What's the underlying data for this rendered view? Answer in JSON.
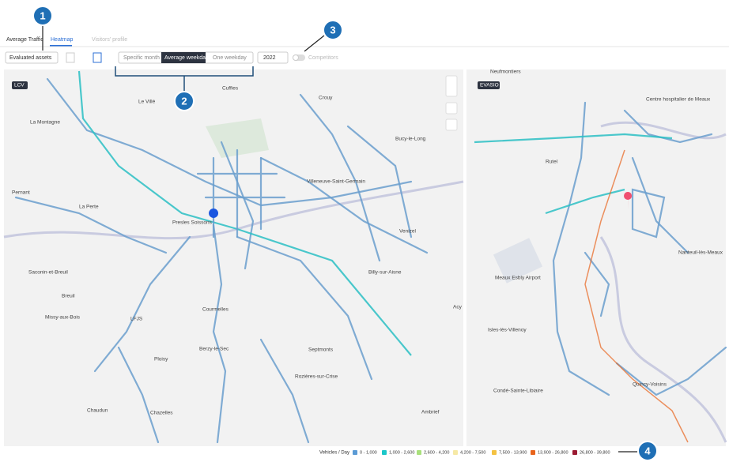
{
  "tabs": [
    "Average Traffic",
    "Heatmap",
    "Visitors' profile"
  ],
  "toolbar": {
    "assets": "Evaluated assets",
    "periods": [
      "Specific month",
      "Average weekday",
      "One weekday"
    ],
    "year": "2022",
    "competitors": "Competitors"
  },
  "maps": [
    {
      "badge": "LCV",
      "places": [
        "Crouy",
        "Cuffies",
        "Le Villé",
        "La Montagne",
        "Bucy-le-Long",
        "Villeneuve-Saint-Germain",
        "Pernant",
        "La Perte",
        "Presles Soissons",
        "Venizel",
        "Billy-sur-Aisne",
        "Saconin-et-Breuil",
        "Breuil",
        "Missy-aux-Bois",
        "LFJS",
        "Courmelles",
        "Berzy-le-Sec",
        "Ploisy",
        "Septmonts",
        "Rozières-sur-Crise",
        "Chaudun",
        "Chazelles",
        "Ambrief",
        "Acy"
      ]
    },
    {
      "badge": "EVASIO",
      "places": [
        "Neufmontiers",
        "Centre hospitalier de Meaux",
        "Rutel",
        "Nanteuil-lès-Meaux",
        "Meaux Esbly Airport",
        "Isles-lès-Villenoy",
        "Condé-Sainte-Libiaire",
        "Quincy-Voisins"
      ]
    }
  ],
  "legend": {
    "title": "Vehicles / Day",
    "items": [
      {
        "label": "0 - 1,000",
        "color": "#5b9bd5"
      },
      {
        "label": "1,000 - 2,600",
        "color": "#1cc7c9"
      },
      {
        "label": "2,600 - 4,200",
        "color": "#a9e07c"
      },
      {
        "label": "4,200 - 7,500",
        "color": "#f6e9a6"
      },
      {
        "label": "7,500 - 13,900",
        "color": "#f4c242"
      },
      {
        "label": "13,900 - 26,800",
        "color": "#e8641c"
      },
      {
        "label": "26,800 - 39,800",
        "color": "#9b1b33"
      }
    ]
  },
  "callouts": [
    "1",
    "2",
    "3",
    "4"
  ]
}
